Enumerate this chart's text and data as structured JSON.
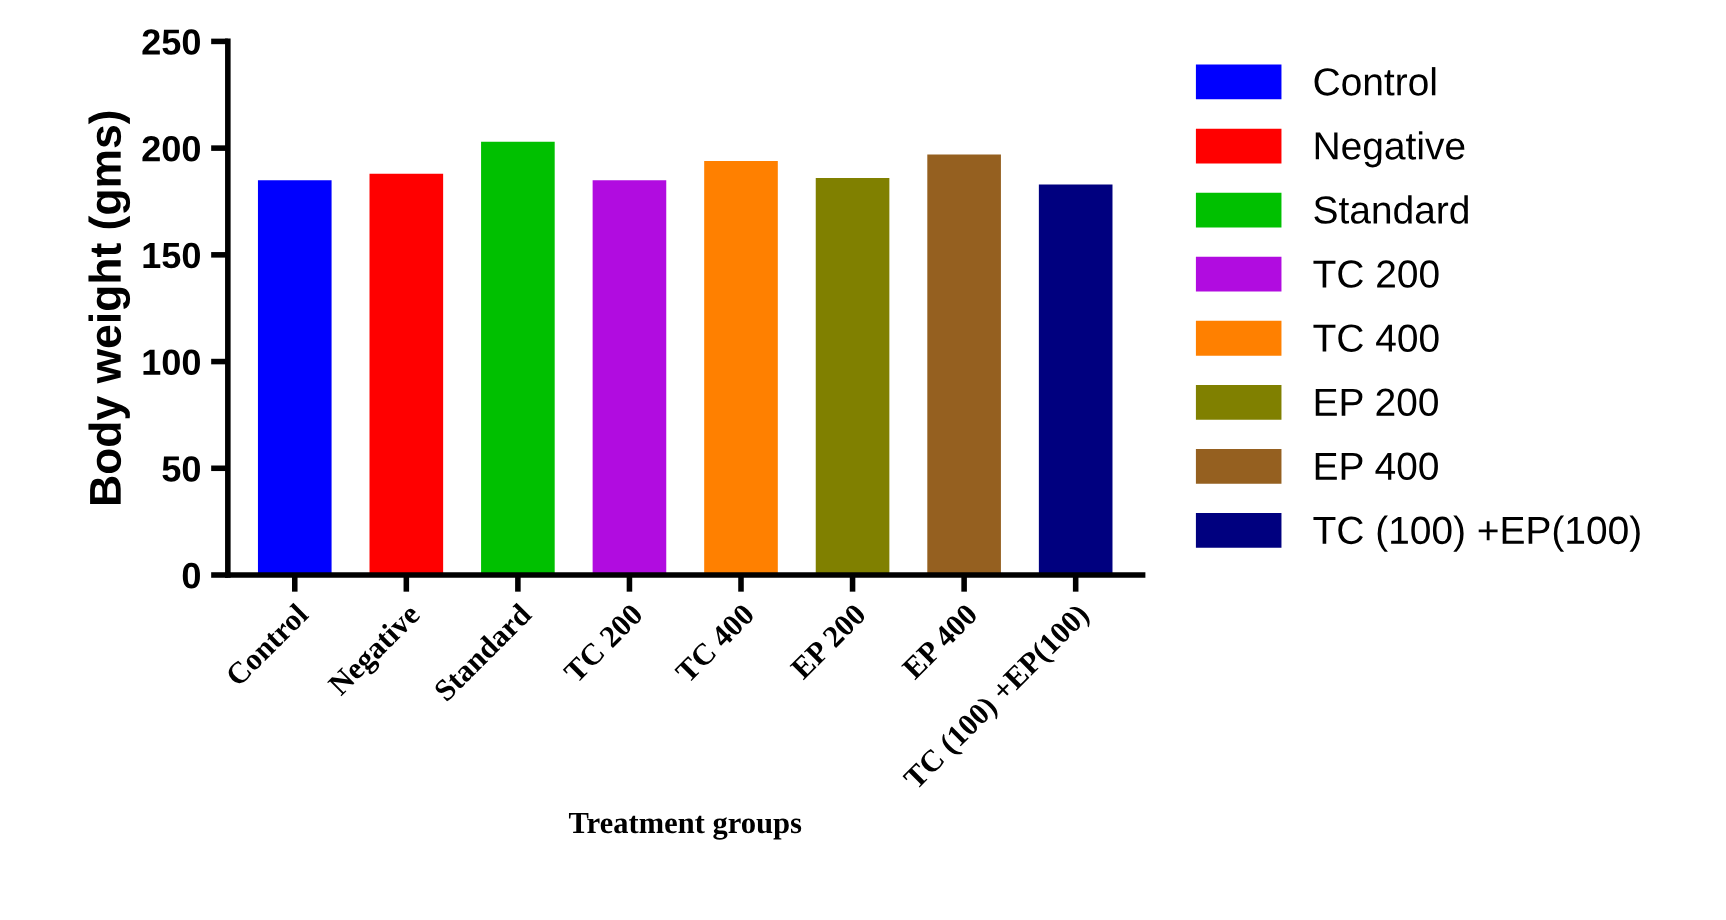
{
  "chart_data": {
    "type": "bar",
    "xlabel": "Treatment groups",
    "ylabel": "Body weight (gms)",
    "categories": [
      "Control",
      "Negative",
      "Standard",
      "TC 200",
      "TC 400",
      "EP 200",
      "EP 400",
      "TC (100) +EP(100)"
    ],
    "series": [
      {
        "name": "Control",
        "color": "#0000ff",
        "values": [
          185,
          null,
          null,
          null,
          null,
          null,
          null,
          null
        ]
      },
      {
        "name": "Negative",
        "color": "#ff0000",
        "values": [
          null,
          188,
          null,
          null,
          null,
          null,
          null,
          null
        ]
      },
      {
        "name": "Standard",
        "color": "#00c000",
        "values": [
          null,
          null,
          203,
          null,
          null,
          null,
          null,
          null
        ]
      },
      {
        "name": "TC 200",
        "color": "#b10ce0",
        "values": [
          null,
          null,
          null,
          185,
          null,
          null,
          null,
          null
        ]
      },
      {
        "name": "TC 400",
        "color": "#ff8000",
        "values": [
          null,
          null,
          null,
          null,
          194,
          null,
          null,
          null
        ]
      },
      {
        "name": "EP 200",
        "color": "#808000",
        "values": [
          null,
          null,
          null,
          null,
          null,
          186,
          null,
          null
        ]
      },
      {
        "name": "EP 400",
        "color": "#956020",
        "values": [
          null,
          null,
          null,
          null,
          null,
          null,
          197,
          null
        ]
      },
      {
        "name": "TC (100) +EP(100)",
        "color": "#00007f",
        "values": [
          null,
          null,
          null,
          null,
          null,
          null,
          null,
          183
        ]
      }
    ],
    "ylim": [
      0,
      250
    ],
    "yticks": [
      0,
      50,
      100,
      150,
      200,
      250
    ],
    "legend": "right"
  }
}
